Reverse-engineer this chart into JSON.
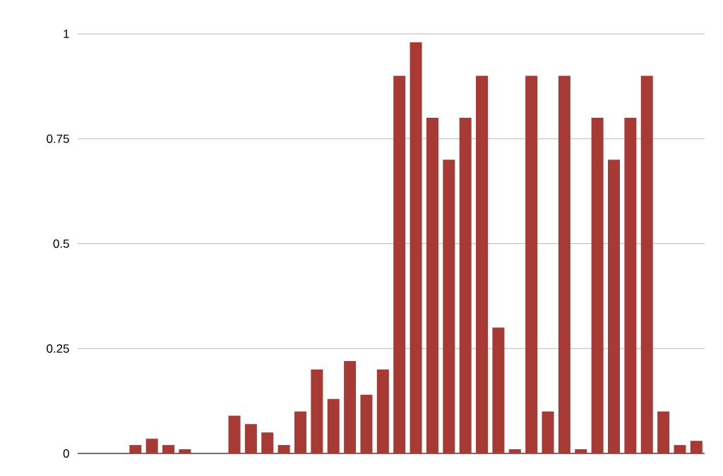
{
  "chart_data": {
    "type": "bar",
    "categories": [
      null,
      null,
      null,
      null,
      null,
      null,
      null,
      null,
      null,
      null,
      null,
      null,
      null,
      null,
      null,
      null,
      null,
      null,
      null,
      null,
      null,
      null,
      null,
      null,
      null,
      null,
      null,
      null,
      null,
      null,
      null,
      null,
      null,
      null,
      null,
      null,
      null,
      null
    ],
    "values": [
      0,
      0,
      0,
      0.02,
      0.035,
      0.02,
      0.01,
      0,
      0,
      0.09,
      0.07,
      0.05,
      0.02,
      0.1,
      0.2,
      0.13,
      0.22,
      0.14,
      0.2,
      0.9,
      0.98,
      0.8,
      0.7,
      0.8,
      0.9,
      0.3,
      0.01,
      0.9,
      0.1,
      0.9,
      0.01,
      0.8,
      0.7,
      0.8,
      0.9,
      0.1,
      0.02,
      0.03
    ],
    "color": "#a83a36",
    "ylim": [
      0,
      1
    ],
    "yticks": [
      0,
      0.25,
      0.5,
      0.75,
      1
    ],
    "grid": "y",
    "legend": false,
    "tick_labels": "y"
  }
}
